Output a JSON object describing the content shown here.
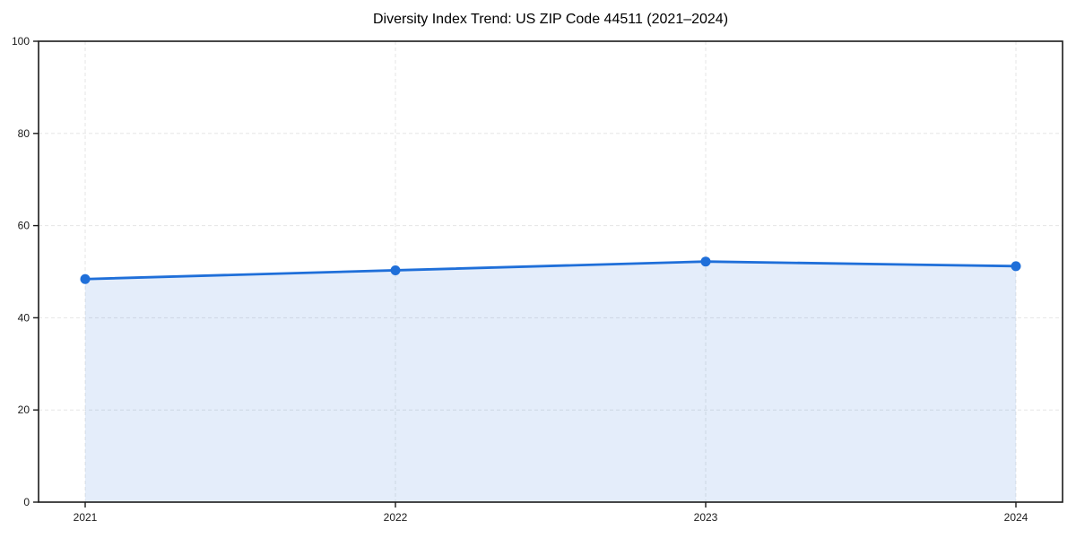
{
  "chart_data": {
    "type": "area",
    "title": "Diversity Index Trend: US ZIP Code 44511 (2021–2024)",
    "categories": [
      "2021",
      "2022",
      "2023",
      "2024"
    ],
    "series": [
      {
        "name": "Diversity Index",
        "values": [
          48.4,
          50.3,
          52.2,
          51.2
        ]
      }
    ],
    "xlabel": "",
    "ylabel": "",
    "ylim": [
      0,
      100
    ],
    "yticks": [
      0,
      20,
      40,
      60,
      80,
      100
    ],
    "grid": true,
    "grid_style": "dashed",
    "legend_position": "none",
    "marker": "circle",
    "colors": {
      "line": "#1f6fd9",
      "marker": "#1f6fd9",
      "fill": "#1f6fd9",
      "fill_opacity": 0.12,
      "grid": "#e5e5e5",
      "axis": "#1a1a1a",
      "tick_text": "#1a1a1a",
      "title_text": "#000000",
      "background": "#ffffff"
    }
  }
}
